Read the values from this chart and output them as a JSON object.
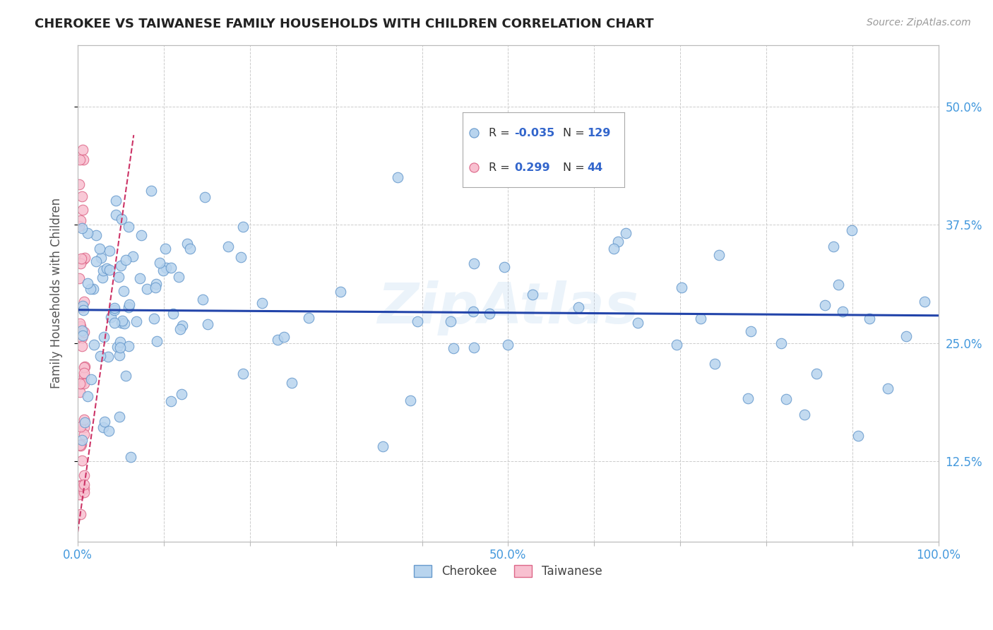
{
  "title": "CHEROKEE VS TAIWANESE FAMILY HOUSEHOLDS WITH CHILDREN CORRELATION CHART",
  "source": "Source: ZipAtlas.com",
  "ylabel": "Family Households with Children",
  "cherokee_R": -0.035,
  "cherokee_N": 129,
  "taiwanese_R": 0.299,
  "taiwanese_N": 44,
  "xlim": [
    0.0,
    1.0
  ],
  "ylim": [
    0.04,
    0.565
  ],
  "cherokee_color": "#b8d4ee",
  "cherokee_edge_color": "#6699cc",
  "taiwanese_color": "#f8c0d0",
  "taiwanese_edge_color": "#dd6688",
  "trend_cherokee_color": "#2244aa",
  "trend_taiwanese_color": "#cc3366",
  "background_color": "#ffffff",
  "grid_color": "#cccccc",
  "title_color": "#222222",
  "axis_label_color": "#555555",
  "tick_label_color": "#4499dd",
  "legend_R_color": "#3366cc",
  "watermark_color": "#b8d4ee"
}
